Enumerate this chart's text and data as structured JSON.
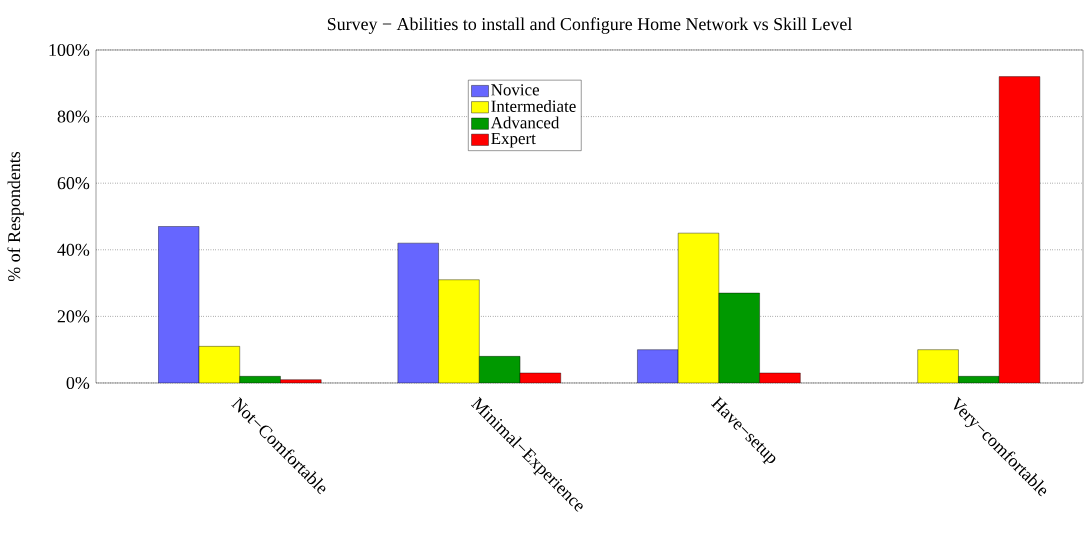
{
  "chart_data": {
    "type": "bar",
    "title": "Survey − Abilities to install and Configure Home Network vs Skill Level",
    "ylabel": "% of Respondents",
    "categories": [
      "Not−Comfortable",
      "Minimal−Experience",
      "Have−setup",
      "Very−comfortable"
    ],
    "series": [
      {
        "name": "Novice",
        "color": "#6666ff",
        "values": [
          47,
          42,
          10,
          null
        ]
      },
      {
        "name": "Intermediate",
        "color": "#ffff00",
        "values": [
          11,
          31,
          45,
          10
        ]
      },
      {
        "name": "Advanced",
        "color": "#009900",
        "values": [
          2,
          8,
          27,
          2
        ]
      },
      {
        "name": "Expert",
        "color": "#ff0000",
        "values": [
          1,
          3,
          3,
          92
        ]
      }
    ],
    "ylim": [
      0,
      100
    ],
    "yticks": [
      {
        "value": 0,
        "label": "0%"
      },
      {
        "value": 20,
        "label": "20%"
      },
      {
        "value": 40,
        "label": "40%"
      },
      {
        "value": 60,
        "label": "60%"
      },
      {
        "value": 80,
        "label": "80%"
      },
      {
        "value": 100,
        "label": "100%"
      }
    ],
    "grid": "y",
    "legend": "top"
  }
}
